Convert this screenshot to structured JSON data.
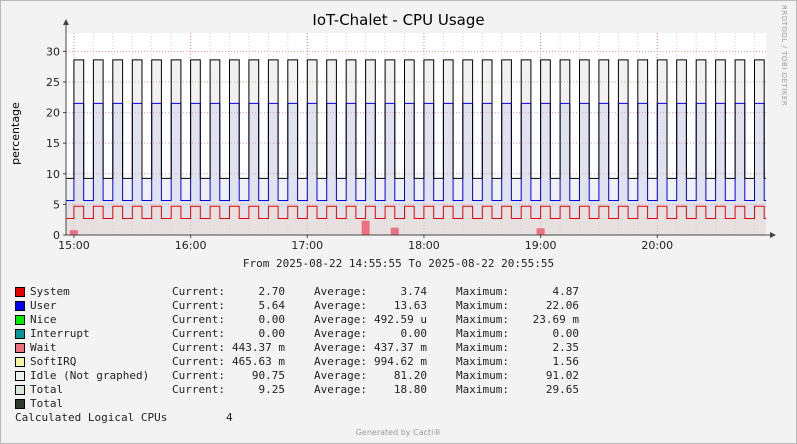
{
  "chart_data": {
    "type": "area",
    "title": "IoT-Chalet - CPU Usage",
    "ylabel": "percentage",
    "ylim": [
      0,
      33
    ],
    "yticks": [
      0,
      5,
      10,
      15,
      20,
      25,
      30
    ],
    "xlim": [
      "2025-08-22 14:55:55",
      "2025-08-22 20:55:55"
    ],
    "xticks": [
      "15:00",
      "16:00",
      "17:00",
      "18:00",
      "19:00",
      "20:00"
    ],
    "grid": true,
    "period_minutes": 10,
    "high_fraction": 0.5,
    "series": [
      {
        "name": "User",
        "color": "#0000ff",
        "high": 21.5,
        "low": 5.64,
        "style": "line"
      },
      {
        "name": "System",
        "color": "#ea0000",
        "high": 4.7,
        "low": 2.7,
        "style": "line"
      },
      {
        "name": "Total",
        "color": "#000000",
        "high": 28.6,
        "low": 9.25,
        "style": "line"
      },
      {
        "name": "Wait",
        "color": "#ee6f80",
        "style": "area",
        "spikes": [
          {
            "x": "17:30",
            "y": 2.35
          },
          {
            "x": "17:45",
            "y": 1.2
          },
          {
            "x": "19:00",
            "y": 1.1
          },
          {
            "x": "15:00",
            "y": 0.8
          }
        ]
      }
    ],
    "legend": [
      {
        "name": "System",
        "color": "#ea0000",
        "current": "2.70",
        "average": "3.74",
        "maximum": "4.87"
      },
      {
        "name": "User",
        "color": "#0000ff",
        "current": "5.64",
        "average": "13.63",
        "maximum": "22.06"
      },
      {
        "name": "Nice",
        "color": "#00ee00",
        "current": "0.00",
        "average": "492.59 u",
        "maximum": "23.69 m"
      },
      {
        "name": "Interrupt",
        "color": "#009999",
        "current": "0.00",
        "average": "0.00",
        "maximum": "0.00"
      },
      {
        "name": "Wait",
        "color": "#ee6f80",
        "current": "443.37 m",
        "average": "437.37 m",
        "maximum": "2.35"
      },
      {
        "name": "SoftIRQ",
        "color": "#f5f5a0",
        "current": "465.63 m",
        "average": "994.62 m",
        "maximum": "1.56"
      },
      {
        "name": "Idle (Not graphed)",
        "color": "#e8f2f2",
        "current": "90.75",
        "average": "81.20",
        "maximum": "91.02"
      },
      {
        "name": "Total",
        "color": "#d9e6da",
        "current": "9.25",
        "average": "18.80",
        "maximum": "29.65"
      },
      {
        "name": "Total",
        "color": "#2f3a2f"
      }
    ]
  },
  "range_text": "From 2025-08-22 14:55:55 To 2025-08-22 20:55:55",
  "labels": {
    "current": "Current:",
    "average": "Average:",
    "maximum": "Maximum:"
  },
  "cpus": {
    "label": "Calculated Logical CPUs",
    "value": "4"
  },
  "watermark": "RRDTOOL / TOBI OETIKER",
  "footer": "Generated by Cacti®"
}
